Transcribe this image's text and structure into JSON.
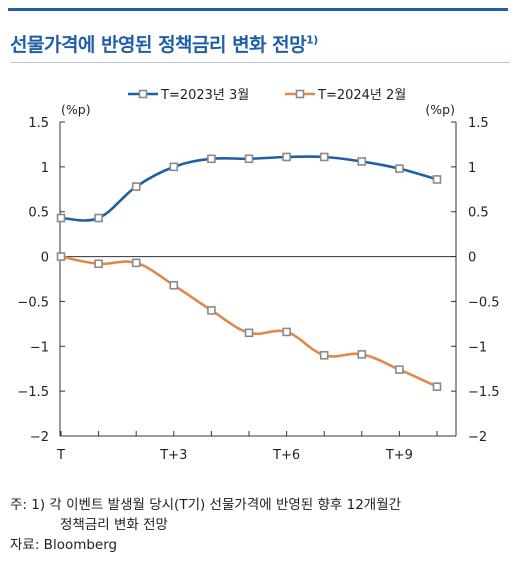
{
  "title": "선물가격에 반영된 정책금리 변화 전망",
  "title_sup": "1)",
  "chart_data": {
    "type": "line",
    "x": [
      0,
      1,
      2,
      3,
      4,
      5,
      6,
      7,
      8,
      9,
      10
    ],
    "x_tick_labels": [
      "T",
      "",
      "",
      "T+3",
      "",
      "",
      "T+6",
      "",
      "",
      "T+9",
      ""
    ],
    "ylim": [
      -2,
      1.5
    ],
    "y_ticks": [
      1.5,
      1,
      0.5,
      0,
      -0.5,
      -1,
      -1.5,
      -2
    ],
    "y_tick_labels": [
      "1.5",
      "1",
      "0.5",
      "0",
      "−0.5",
      "−1",
      "−1.5",
      "−2"
    ],
    "y_unit_left": "(%p)",
    "y_unit_right": "(%p)",
    "legend_position": "top",
    "grid": false,
    "series": [
      {
        "name": "T=2023년 3월",
        "color": "#1f5fa8",
        "marker": "square-hollow",
        "values": [
          0.43,
          0.43,
          0.78,
          1.0,
          1.09,
          1.09,
          1.11,
          1.11,
          1.06,
          0.98,
          0.86
        ]
      },
      {
        "name": "T=2024년 2월",
        "color": "#e08a4a",
        "marker": "square-hollow",
        "values": [
          0.0,
          -0.08,
          -0.07,
          -0.32,
          -0.6,
          -0.85,
          -0.84,
          -1.1,
          -1.09,
          -1.26,
          -1.45
        ]
      }
    ]
  },
  "notes": {
    "line1": "주: 1) 각 이벤트 발생월 당시(T기) 선물가격에 반영된 향후 12개월간",
    "line2": "정책금리 변화 전망",
    "source": "자료: Bloomberg"
  }
}
